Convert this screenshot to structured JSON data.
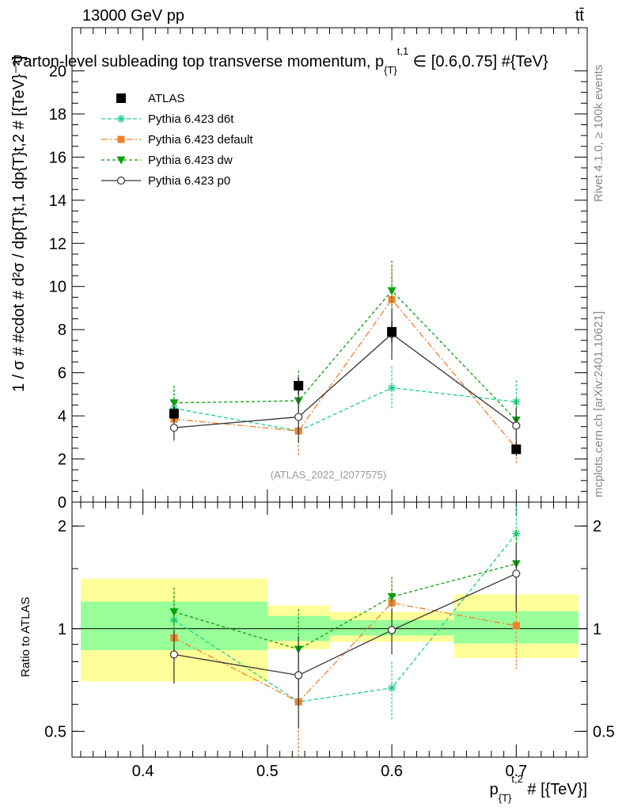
{
  "header": {
    "energy_label": "13000 GeV pp",
    "process_label": "tt̄",
    "title": "Parton-level subleading top transverse momentum, p{T}t,1 ∈ [0.6,0.75] #{TeV}",
    "rivet_label": "Rivet 4.1.0, ≥ 100k events",
    "mcplots_label": "mcplots.cern.ch [arXiv:2401.10621]",
    "analysis_id": "(ATLAS_2022_I2077575)"
  },
  "axes": {
    "main_ylabel": "1 / σ # #cdot # d²σ / dp{T}t,1 dp{T}t,2 # [{TeV}⁻²]",
    "ratio_ylabel": "Ratio to ATLAS",
    "xlabel": "p{T}t,2 # [{TeV}]"
  },
  "colors": {
    "atlas": "#000000",
    "d6t": "#1fcc8a",
    "default": "#f08030",
    "dw": "#0aa00a",
    "p0": "#333333",
    "band_inner": "#99ff99",
    "band_outer": "#ffff99"
  },
  "chart_data": [
    {
      "type": "line",
      "panel": "main",
      "xlim": [
        0.343,
        0.757
      ],
      "ylim": [
        0,
        22
      ],
      "x_ticks": [
        0.4,
        0.5,
        0.6,
        0.7
      ],
      "y_ticks": [
        0,
        2,
        4,
        6,
        8,
        10,
        12,
        14,
        16,
        18,
        20
      ],
      "y_tick_labels": [
        "0",
        "2",
        "4",
        "6",
        "8",
        "10",
        "12",
        "14",
        "16",
        "18",
        "20"
      ],
      "legend_position": "top-left",
      "series": [
        {
          "key": "atlas",
          "name": "ATLAS",
          "marker": "square",
          "dash": "none",
          "x": [
            0.425,
            0.525,
            0.6,
            0.7
          ],
          "y": [
            4.1,
            5.4,
            7.9,
            2.45
          ],
          "yerr": [
            0.3,
            0.4,
            0.5,
            0.3
          ]
        },
        {
          "key": "d6t",
          "name": "Pythia 6.423 d6t",
          "marker": "star",
          "dash": "5,3",
          "x": [
            0.425,
            0.525,
            0.6,
            0.7
          ],
          "y": [
            4.35,
            3.3,
            5.3,
            4.65
          ],
          "yerr": [
            0.9,
            1.2,
            1.0,
            1.0
          ]
        },
        {
          "key": "default",
          "name": "Pythia 6.423 default",
          "marker": "square-small",
          "dash": "8,3,2,3",
          "x": [
            0.425,
            0.525,
            0.6,
            0.7
          ],
          "y": [
            3.85,
            3.3,
            9.4,
            2.5
          ],
          "yerr": [
            0.9,
            1.2,
            1.5,
            0.7
          ]
        },
        {
          "key": "dw",
          "name": "Pythia 6.423 dw",
          "marker": "triangle-down",
          "dash": "4,3",
          "x": [
            0.425,
            0.525,
            0.6,
            0.7
          ],
          "y": [
            4.6,
            4.7,
            9.8,
            3.8
          ],
          "yerr": [
            0.8,
            1.4,
            1.4,
            1.0
          ]
        },
        {
          "key": "p0",
          "name": "Pythia 6.423 p0",
          "marker": "circle-open",
          "dash": "none",
          "x": [
            0.425,
            0.525,
            0.6,
            0.7
          ],
          "y": [
            3.45,
            3.95,
            7.8,
            3.55
          ],
          "yerr": [
            0.6,
            1.2,
            1.2,
            0.8
          ]
        }
      ]
    },
    {
      "type": "line",
      "panel": "ratio",
      "xlim": [
        0.343,
        0.757
      ],
      "ylim": [
        0.42,
        2.35
      ],
      "y_scale": "log",
      "x_ticks": [
        0.4,
        0.5,
        0.6,
        0.7
      ],
      "x_tick_labels": [
        "0.4",
        "0.5",
        "0.6",
        "0.7"
      ],
      "y_ticks": [
        0.5,
        1,
        2
      ],
      "y_tick_labels": [
        "0.5",
        "1",
        "2"
      ],
      "bands": [
        {
          "x": [
            0.35,
            0.5
          ],
          "inner": [
            0.865,
            1.2
          ],
          "outer": [
            0.7,
            1.4
          ]
        },
        {
          "x": [
            0.5,
            0.55
          ],
          "inner": [
            0.92,
            1.09
          ],
          "outer": [
            0.87,
            1.17
          ]
        },
        {
          "x": [
            0.55,
            0.65
          ],
          "inner": [
            0.955,
            1.06
          ],
          "outer": [
            0.915,
            1.12
          ]
        },
        {
          "x": [
            0.65,
            0.75
          ],
          "inner": [
            0.905,
            1.125
          ],
          "outer": [
            0.82,
            1.26
          ]
        }
      ],
      "series": [
        {
          "key": "d6t",
          "x": [
            0.425,
            0.525,
            0.6,
            0.7
          ],
          "y": [
            1.06,
            0.61,
            0.67,
            1.9
          ],
          "yerr": [
            0.22,
            0.25,
            0.13,
            0.38
          ]
        },
        {
          "key": "default",
          "x": [
            0.425,
            0.525,
            0.6,
            0.7
          ],
          "y": [
            0.94,
            0.61,
            1.19,
            1.02
          ],
          "yerr": [
            0.22,
            0.25,
            0.2,
            0.26
          ]
        },
        {
          "key": "dw",
          "x": [
            0.425,
            0.525,
            0.6,
            0.7
          ],
          "y": [
            1.12,
            0.87,
            1.24,
            1.55
          ],
          "yerr": [
            0.2,
            0.27,
            0.18,
            0.4
          ]
        },
        {
          "key": "p0",
          "x": [
            0.425,
            0.525,
            0.6,
            0.7
          ],
          "y": [
            0.84,
            0.73,
            0.99,
            1.45
          ],
          "yerr": [
            0.15,
            0.22,
            0.15,
            0.33
          ]
        }
      ]
    }
  ]
}
